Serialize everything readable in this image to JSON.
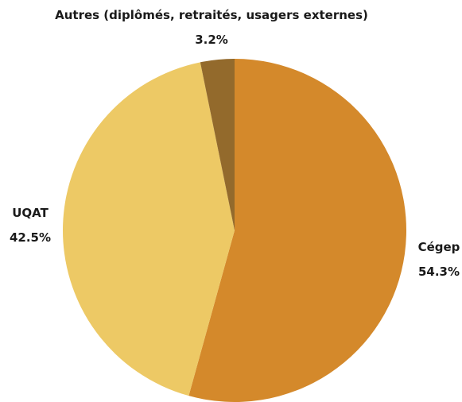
{
  "chart_data": {
    "type": "pie",
    "title": "",
    "start_angle_deg": 0,
    "direction": "clockwise",
    "slices": [
      {
        "name": "Cégep",
        "value": 54.3,
        "label": "54.3%",
        "color": "#D4892B"
      },
      {
        "name": "UQAT",
        "value": 42.5,
        "label": "42.5%",
        "color": "#EDC965"
      },
      {
        "name": "Autres (diplômés, retraités, usagers externes)",
        "value": 3.2,
        "label": "3.2%",
        "color": "#936A2C"
      }
    ],
    "legend": "none"
  }
}
